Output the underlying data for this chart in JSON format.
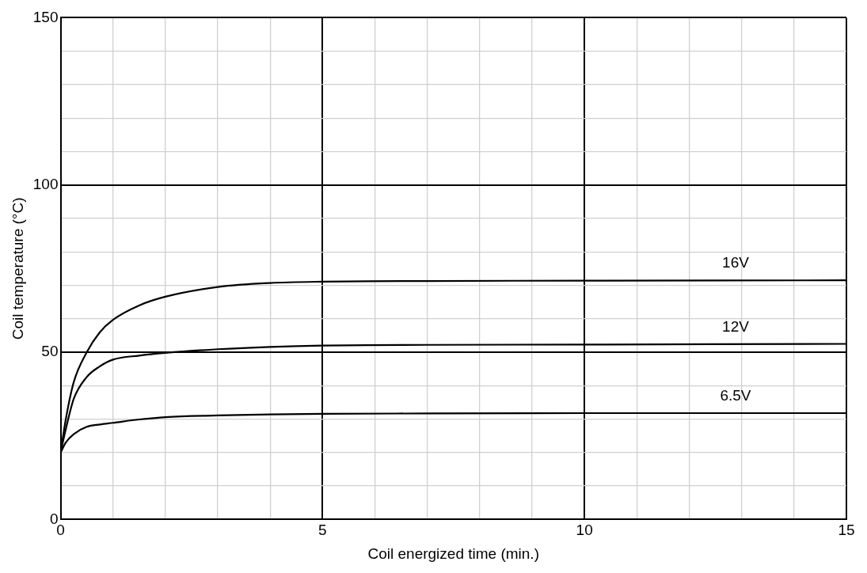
{
  "chart_data": {
    "type": "line",
    "xlabel": "Coil energized time (min.)",
    "ylabel": "Coil temperature (°C)",
    "xlim": [
      0,
      15
    ],
    "ylim": [
      0,
      150
    ],
    "xticks": [
      0,
      {
        "value": 1,
        "label": null
      },
      {
        "value": 2,
        "label": null
      },
      {
        "value": 3,
        "label": null
      },
      {
        "value": 4,
        "label": null
      },
      5,
      {
        "value": 6,
        "label": null
      },
      {
        "value": 7,
        "label": null
      },
      {
        "value": 8,
        "label": null
      },
      {
        "value": 9,
        "label": null
      },
      10,
      {
        "value": 11,
        "label": null
      },
      {
        "value": 12,
        "label": null
      },
      {
        "value": 13,
        "label": null
      },
      {
        "value": 14,
        "label": null
      },
      15
    ],
    "yticks": [
      0,
      {
        "value": 10,
        "label": null
      },
      {
        "value": 20,
        "label": null
      },
      {
        "value": 30,
        "label": null
      },
      {
        "value": 40,
        "label": null
      },
      50,
      {
        "value": 60,
        "label": null
      },
      {
        "value": 70,
        "label": null
      },
      {
        "value": 80,
        "label": null
      },
      {
        "value": 90,
        "label": null
      },
      100,
      {
        "value": 110,
        "label": null
      },
      {
        "value": 120,
        "label": null
      },
      {
        "value": 130,
        "label": null
      },
      {
        "value": 140,
        "label": null
      },
      150
    ],
    "grid": true,
    "legend": false,
    "marker": "none",
    "line_style": "solid",
    "x": [
      0,
      0.1,
      0.25,
      0.5,
      0.75,
      1,
      1.5,
      2,
      3,
      4,
      5,
      7,
      10,
      15
    ],
    "series": [
      {
        "name": "16V",
        "color": "#000000",
        "values": [
          20,
          30,
          41,
          50,
          56,
          59.7,
          64,
          66.6,
          69.5,
          70.7,
          71.1,
          71.3,
          71.4,
          71.5
        ]
      },
      {
        "name": "12V",
        "color": "#000000",
        "values": [
          20,
          27,
          36,
          42.6,
          45.8,
          47.8,
          49,
          49.8,
          50.9,
          51.6,
          52,
          52.2,
          52.3,
          52.5
        ]
      },
      {
        "name": "6.5V",
        "color": "#000000",
        "values": [
          20,
          23,
          25.5,
          27.7,
          28.4,
          28.9,
          29.9,
          30.6,
          31.1,
          31.4,
          31.6,
          31.7,
          31.8,
          31.8
        ]
      }
    ]
  }
}
